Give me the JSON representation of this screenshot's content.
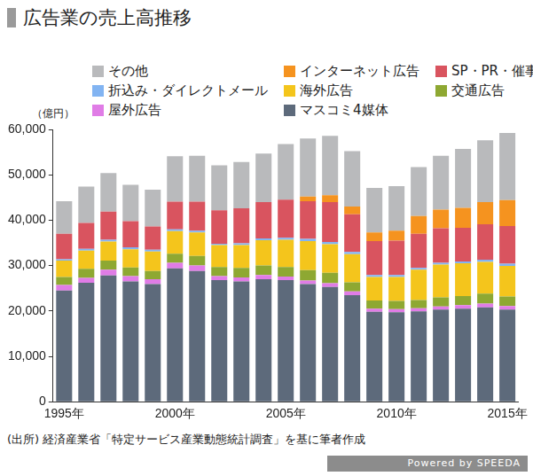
{
  "chart_data": {
    "type": "bar",
    "title": "広告業の売上高推移",
    "y_label": "（億円）",
    "source": "(出所) 経済産業省「特定サービス産業動態統計調査」を基に筆者作成",
    "footer": "Powered by SPEEDA",
    "stacked": true,
    "grid": false,
    "legend": "top-left",
    "categories": [
      "1995年",
      null,
      null,
      null,
      null,
      "2000年",
      null,
      null,
      null,
      null,
      "2005年",
      null,
      null,
      null,
      null,
      "2010年",
      null,
      null,
      null,
      null,
      "2015年"
    ],
    "ylim": [
      0,
      60000
    ],
    "yticks": [
      0,
      {
        "value": 10000,
        "label": "10,000"
      },
      {
        "value": 20000,
        "label": "20,000"
      },
      {
        "value": 30000,
        "label": "30,000"
      },
      {
        "value": 40000,
        "label": "40,000"
      },
      {
        "value": 50000,
        "label": "50,000"
      },
      {
        "value": 60000,
        "label": "60,000"
      }
    ],
    "series": [
      {
        "name": "マスコミ4媒体",
        "color": "#5d6a7b",
        "values": [
          24500,
          26200,
          27800,
          26500,
          25900,
          29400,
          28800,
          26800,
          26500,
          27000,
          26800,
          25900,
          25300,
          23500,
          19800,
          19700,
          19900,
          20300,
          20500,
          20800,
          20300
        ]
      },
      {
        "name": "屋外広告",
        "color": "#e07ce6",
        "values": [
          1200,
          1100,
          1300,
          1200,
          1100,
          1200,
          1200,
          900,
          900,
          900,
          800,
          800,
          800,
          800,
          700,
          700,
          700,
          700,
          800,
          800,
          800
        ]
      },
      {
        "name": "交通広告",
        "color": "#8ea832",
        "values": [
          1800,
          2000,
          2000,
          1900,
          1800,
          2000,
          2100,
          2000,
          2100,
          2100,
          2100,
          2300,
          2300,
          2000,
          1800,
          1800,
          1800,
          2000,
          2000,
          2200,
          2100
        ]
      },
      {
        "name": "海外広告",
        "color": "#f4c51c",
        "values": [
          3600,
          4000,
          4200,
          4000,
          4300,
          5000,
          5200,
          4800,
          5000,
          5600,
          6000,
          6400,
          6300,
          6200,
          5200,
          5300,
          6700,
          7200,
          7200,
          7000,
          6700
        ]
      },
      {
        "name": "折込み・ダイレクトメール",
        "color": "#82b4f2",
        "values": [
          300,
          400,
          400,
          400,
          400,
          400,
          400,
          300,
          400,
          400,
          400,
          500,
          500,
          500,
          400,
          400,
          400,
          400,
          400,
          500,
          500
        ]
      },
      {
        "name": "SP・PR・催事企画",
        "color": "#d9545f",
        "values": [
          5600,
          5700,
          6200,
          5800,
          5100,
          6100,
          6400,
          7400,
          7700,
          8000,
          8400,
          8300,
          8800,
          8300,
          7500,
          7600,
          7500,
          7600,
          7400,
          7800,
          8300
        ]
      },
      {
        "name": "インターネット広告",
        "color": "#f5931f",
        "values": [
          0,
          0,
          0,
          0,
          0,
          0,
          0,
          0,
          0,
          0,
          0,
          1000,
          1500,
          1700,
          1900,
          2200,
          3900,
          4100,
          4400,
          4900,
          5700
        ]
      },
      {
        "name": "その他",
        "color": "#b9babc",
        "values": [
          7200,
          8000,
          8500,
          8000,
          8100,
          10000,
          10100,
          9900,
          10200,
          10700,
          12300,
          12800,
          13100,
          12200,
          9800,
          9800,
          10800,
          11900,
          13000,
          13600,
          14800
        ]
      }
    ]
  }
}
